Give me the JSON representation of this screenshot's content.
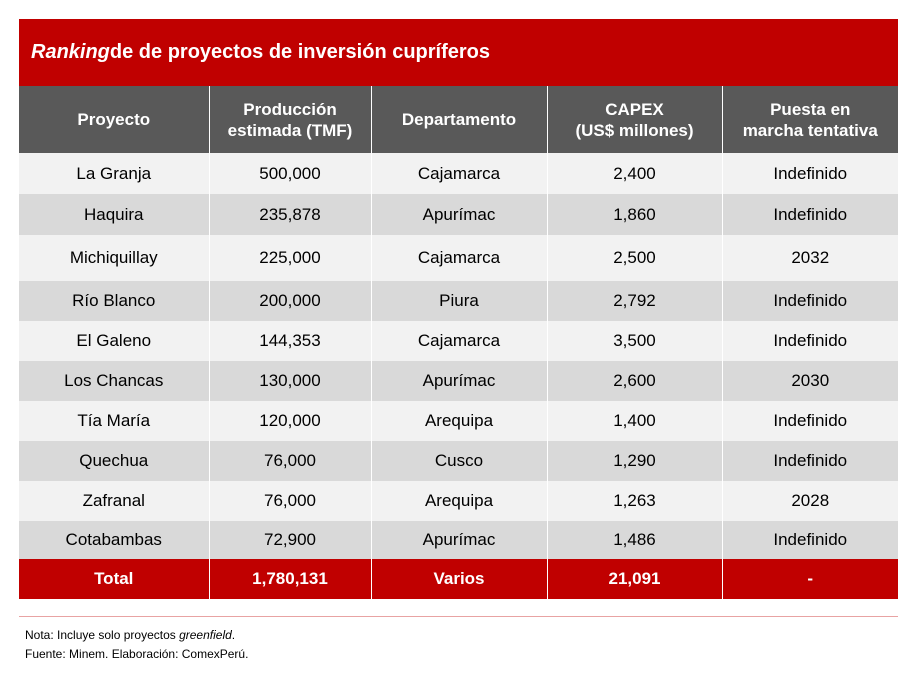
{
  "title": {
    "italic": "Ranking",
    "rest": " de de proyectos de inversión cupríferos"
  },
  "headers": [
    [
      "Proyecto"
    ],
    [
      "Producción",
      "estimada (TMF)"
    ],
    [
      "Departamento"
    ],
    [
      "CAPEX",
      "(US$ millones)"
    ],
    [
      "Puesta en",
      "marcha tentativa"
    ]
  ],
  "rows": [
    [
      "La Granja",
      "500,000",
      "Cajamarca",
      "2,400",
      "Indefinido"
    ],
    [
      "Haquira",
      "235,878",
      "Apurímac",
      "1,860",
      "Indefinido"
    ],
    [
      "Michiquillay",
      "225,000",
      "Cajamarca",
      "2,500",
      "2032"
    ],
    [
      "Río Blanco",
      "200,000",
      "Piura",
      "2,792",
      "Indefinido"
    ],
    [
      "El Galeno",
      "144,353",
      "Cajamarca",
      "3,500",
      "Indefinido"
    ],
    [
      "Los Chancas",
      "130,000",
      "Apurímac",
      "2,600",
      "2030"
    ],
    [
      "Tía María",
      "120,000",
      "Arequipa",
      "1,400",
      "Indefinido"
    ],
    [
      "Quechua",
      "76,000",
      "Cusco",
      "1,290",
      "Indefinido"
    ],
    [
      "Zafranal",
      "76,000",
      "Arequipa",
      "1,263",
      "2028"
    ],
    [
      "Cotabambas",
      "72,900",
      "Apurímac",
      "1,486",
      "Indefinido"
    ]
  ],
  "total": [
    "Total",
    "1,780,131",
    "Varios",
    "21,091",
    "-"
  ],
  "notes": {
    "nota_prefix": "Nota: Incluye solo proyectos ",
    "nota_italic": "greenfield",
    "nota_suffix": ".",
    "fuente": "Fuente: Minem. Elaboración: ComexPerú."
  },
  "colors": {
    "accent_red": "#c00000",
    "header_gray": "#595959",
    "row_light": "#f2f2f2",
    "row_dark": "#d9d9d9"
  }
}
